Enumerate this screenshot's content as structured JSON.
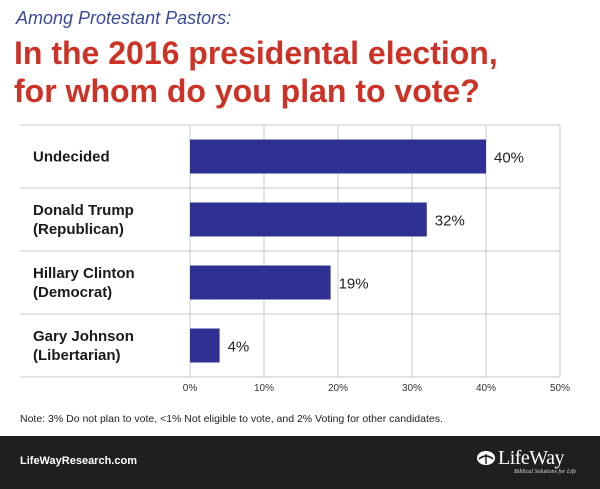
{
  "header": {
    "subtitle": "Among Protestant Pastors:",
    "title_line1": "In the 2016 presidental election,",
    "title_line2": "for whom do you plan to vote?"
  },
  "chart_data": {
    "type": "bar",
    "orientation": "horizontal",
    "categories": [
      [
        "Undecided"
      ],
      [
        "Donald Trump",
        "(Republican)"
      ],
      [
        "Hillary Clinton",
        "(Democrat)"
      ],
      [
        "Gary Johnson",
        "(Libertarian)"
      ]
    ],
    "values": [
      40,
      32,
      19,
      4
    ],
    "value_labels": [
      "40%",
      "32%",
      "19%",
      "4%"
    ],
    "xlim": [
      0,
      50
    ],
    "x_ticks": [
      "0%",
      "10%",
      "20%",
      "30%",
      "40%",
      "50%"
    ],
    "grid": true,
    "bar_color": "#2e3192"
  },
  "note": "Note: 3% Do not plan to vote, <1% Not eligible to vote, and 2% Voting for other candidates.",
  "footer": {
    "url": "LifeWayResearch.com",
    "logo_name": "LifeWay",
    "logo_tagline": "Biblical Solutions for Life",
    "logo_icon": "lifeway-logo-icon"
  },
  "colors": {
    "title": "#cc3326",
    "subtitle": "#3b4a9a",
    "footer_bg": "#1f1f1f"
  }
}
